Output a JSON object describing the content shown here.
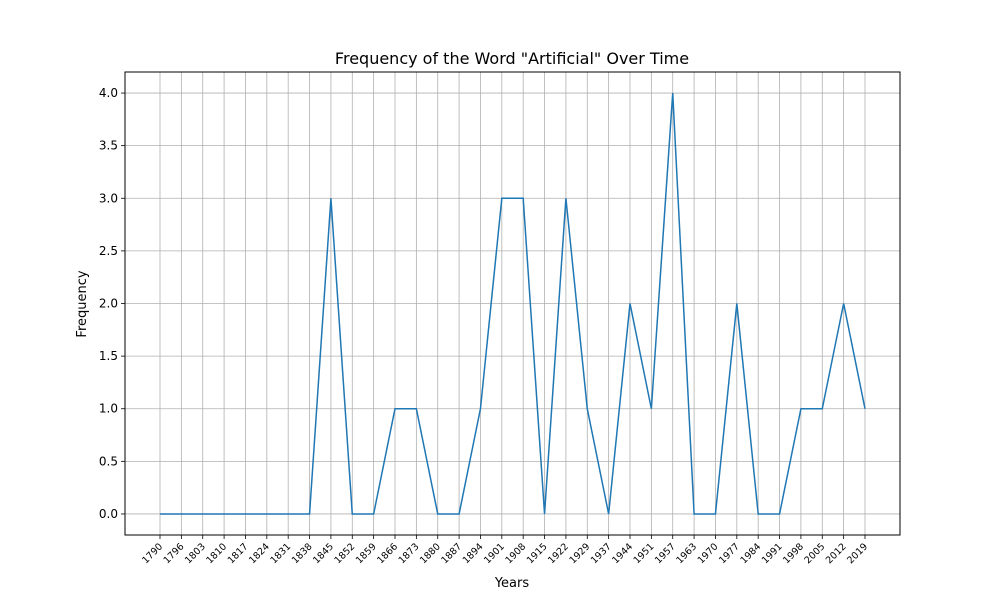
{
  "chart_data": {
    "type": "line",
    "title": "Frequency of the Word \"Artificial\" Over Time",
    "xlabel": "Years",
    "ylabel": "Frequency",
    "ylim": [
      -0.2,
      4.2
    ],
    "yticks": [
      0.0,
      0.5,
      1.0,
      1.5,
      2.0,
      2.5,
      3.0,
      3.5,
      4.0
    ],
    "yticklabels": [
      "0.0",
      "0.5",
      "1.0",
      "1.5",
      "2.0",
      "2.5",
      "3.0",
      "3.5",
      "4.0"
    ],
    "grid": true,
    "line_color": "#1f77b4",
    "categories": [
      "1790",
      "1796",
      "1803",
      "1810",
      "1817",
      "1824",
      "1831",
      "1838",
      "1845",
      "1852",
      "1859",
      "1866",
      "1873",
      "1880",
      "1887",
      "1894",
      "1901",
      "1908",
      "1915",
      "1922",
      "1929",
      "1937",
      "1944",
      "1951",
      "1957",
      "1963",
      "1970",
      "1977",
      "1984",
      "1991",
      "1998",
      "2005",
      "2012",
      "2019"
    ],
    "values": [
      0,
      0,
      0,
      0,
      0,
      0,
      0,
      0,
      3,
      0,
      0,
      1,
      1,
      0,
      0,
      1,
      3,
      3,
      0,
      3,
      1,
      0,
      2,
      1,
      4,
      0,
      0,
      2,
      0,
      0,
      1,
      1,
      2,
      1
    ]
  }
}
